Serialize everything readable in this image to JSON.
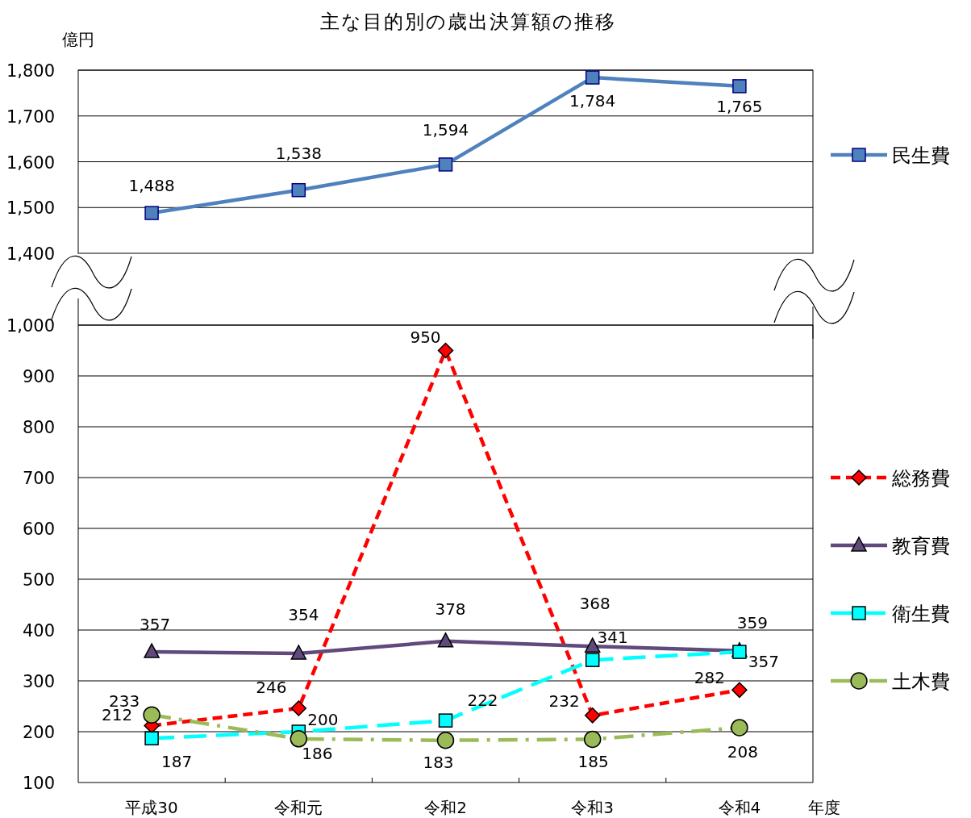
{
  "chart_data": [
    {
      "type": "line",
      "title": "主な目的別の歳出決算額の推移",
      "ylabel": "億円",
      "tick_labels": "y",
      "grid": "y",
      "legend": "right",
      "ylim": [
        1400,
        1800
      ],
      "yticks": [
        {
          "value": 1400,
          "label": "1,400"
        },
        {
          "value": 1500,
          "label": "1,500"
        },
        {
          "value": 1600,
          "label": "1,600"
        },
        {
          "value": 1700,
          "label": "1,700"
        },
        {
          "value": 1800,
          "label": "1,800"
        }
      ],
      "series": [
        {
          "name": "民生費",
          "color": "#4f81bd",
          "marker": "square",
          "line_style": "solid",
          "values": [
            1488,
            1538,
            1594,
            1784,
            1765
          ],
          "value_labels": [
            "1,488",
            "1,538",
            "1,594",
            "1,784",
            "1,765"
          ]
        }
      ]
    },
    {
      "type": "line",
      "xlabel": "年度",
      "categories": [
        "平成30",
        "令和元",
        "令和2",
        "令和3",
        "令和4"
      ],
      "grid": "y",
      "legend": "right",
      "data_labels": true,
      "ylim": [
        100,
        1000
      ],
      "yticks": [
        100,
        200,
        300,
        400,
        500,
        600,
        700,
        800,
        900,
        {
          "value": 1000,
          "label": "1,000"
        }
      ],
      "series": [
        {
          "name": "総務費",
          "color": "#ff0000",
          "marker": "diamond",
          "line_style": "dashed",
          "values": [
            212,
            246,
            950,
            232,
            282
          ]
        },
        {
          "name": "教育費",
          "color": "#604a7b",
          "marker": "triangle",
          "line_style": "solid",
          "values": [
            357,
            354,
            378,
            368,
            359
          ]
        },
        {
          "name": "衛生費",
          "color": "#00ffff",
          "marker": "square",
          "line_style": "longdash",
          "values": [
            187,
            200,
            222,
            341,
            357
          ]
        },
        {
          "name": "土木費",
          "color": "#9bbb59",
          "marker": "circle",
          "line_style": "dashdot",
          "values": [
            233,
            186,
            183,
            185,
            208
          ]
        }
      ]
    }
  ]
}
